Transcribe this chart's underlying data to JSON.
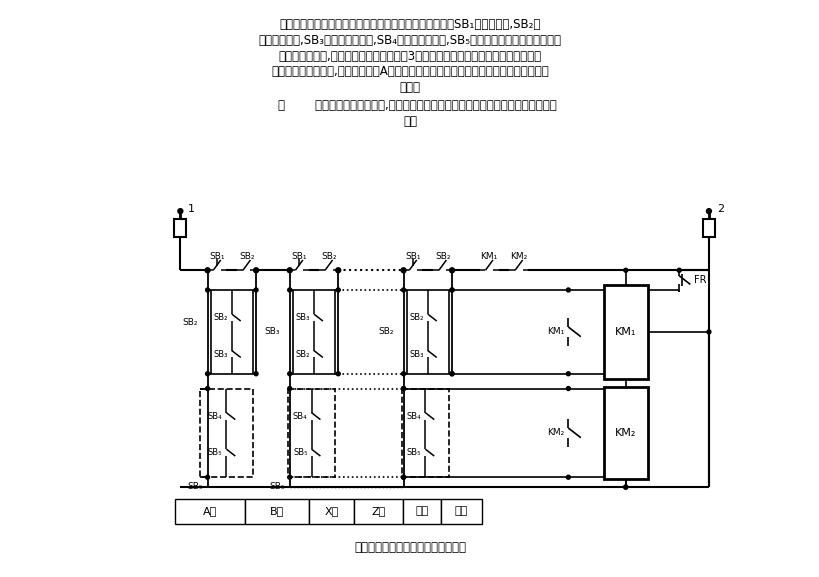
{
  "title": "多地可逆停止、点动、启动控制电路",
  "bottom_label": "多地可逆停止、点动、启动控制电路",
  "table_labels": [
    "A地",
    "B地",
    "X地",
    "Z地",
    "自锁",
    "互锁"
  ],
  "bg_color": "#ffffff",
  "top_texts": [
    "所示为多地可逆停止、点动、启动控制电路。图中各地的SB₁为停止按钮,SB₂为",
    "正向点动按钮,SB₃为正向启动按钮,SB₄为反向点动按钮,SB₅为反向启动按钮。该图具有图",
    "所示电路的特点,其各控制点之间的导线为3根。图中略去了一些联锁控制。正、反向",
    "启动按钮之间的互锁,图中仅示出了A地的。由接触器辅助触点实现各地之间正、反方向的",
    "互锁。"
  ],
  "text_line6": "    图        为各控制按钮布置示意,中间为停止按钮、虚线内为点动按钮、实线内为启动按",
  "text_line7": "钮。"
}
